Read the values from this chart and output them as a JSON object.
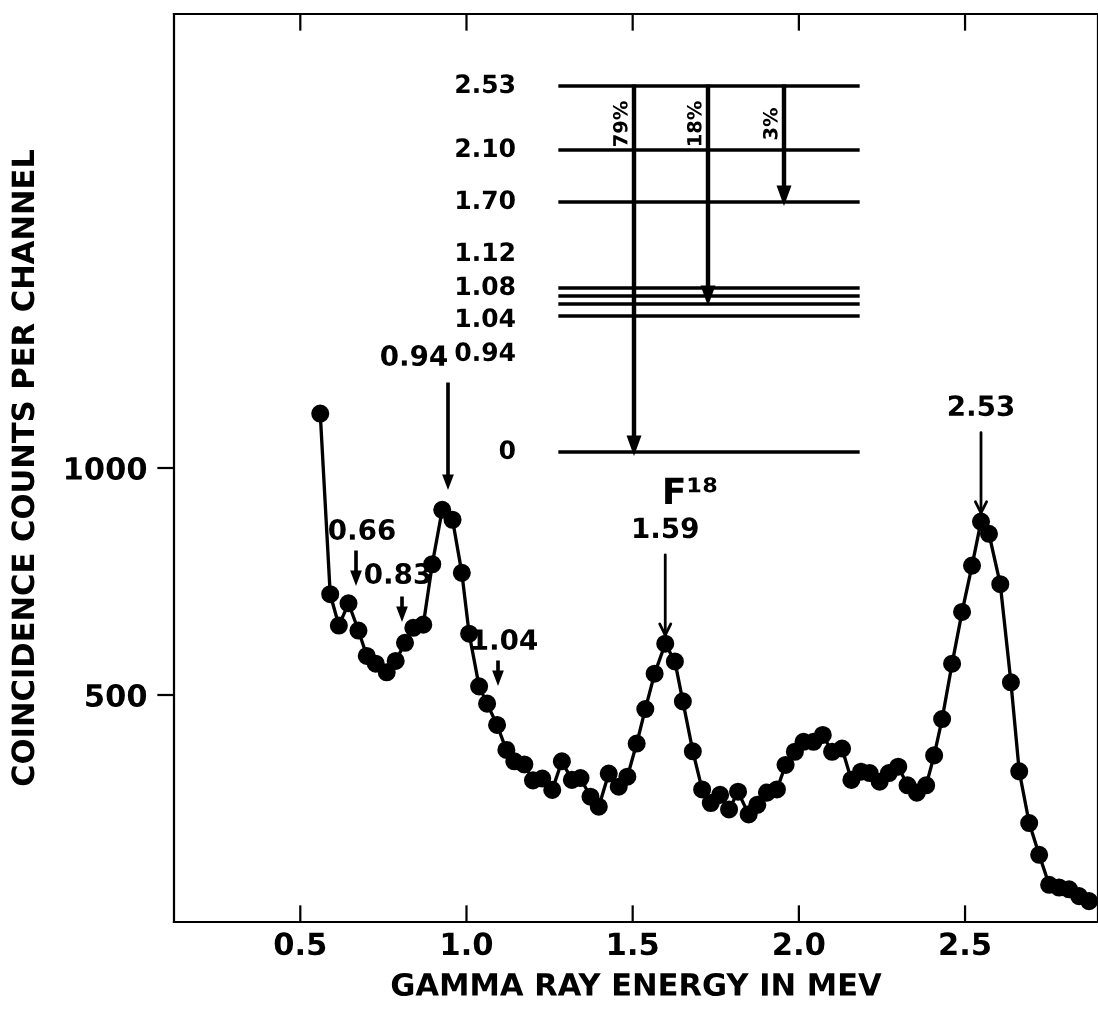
{
  "chart_data": {
    "type": "line",
    "xlabel": "GAMMA RAY ENERGY IN MEV",
    "ylabel": "COINCIDENCE COUNTS PER CHANNEL",
    "xlim": [
      0.12,
      2.9
    ],
    "ylim": [
      0,
      2000
    ],
    "xticks": [
      0.5,
      {
        "value": 1,
        "label": "1.0"
      },
      1.5,
      {
        "value": 2,
        "label": "2.0"
      },
      2.5
    ],
    "yticks": [
      500,
      1000
    ],
    "grid": false,
    "legend": false,
    "marker": "circle",
    "line_style": "solid",
    "series": [
      {
        "color": "#000000",
        "x": [
          0.56,
          0.59,
          0.616,
          0.645,
          0.675,
          0.7,
          0.727,
          0.76,
          0.787,
          0.815,
          0.84,
          0.87,
          0.897,
          0.927,
          0.958,
          0.986,
          1.008,
          1.038,
          1.062,
          1.092,
          1.12,
          1.144,
          1.174,
          1.2,
          1.228,
          1.258,
          1.287,
          1.317,
          1.343,
          1.373,
          1.398,
          1.428,
          1.458,
          1.484,
          1.512,
          1.538,
          1.566,
          1.598,
          1.627,
          1.651,
          1.681,
          1.709,
          1.735,
          1.763,
          1.79,
          1.817,
          1.849,
          1.875,
          1.904,
          1.934,
          1.96,
          1.988,
          2.014,
          2.044,
          2.072,
          2.1,
          2.13,
          2.158,
          2.187,
          2.213,
          2.243,
          2.271,
          2.299,
          2.327,
          2.355,
          2.383,
          2.407,
          2.431,
          2.461,
          2.491,
          2.521,
          2.548,
          2.572,
          2.606,
          2.638,
          2.663,
          2.693,
          2.723,
          2.753,
          2.783,
          2.813,
          2.843,
          2.873
        ],
        "values": [
          1120,
          722,
          653,
          702,
          642,
          586,
          569,
          550,
          575,
          615,
          648,
          655,
          788,
          908,
          886,
          769,
          635,
          519,
          481,
          434,
          379,
          354,
          347,
          312,
          316,
          291,
          354,
          313,
          317,
          276,
          254,
          327,
          298,
          320,
          393,
          469,
          547,
          613,
          574,
          486,
          376,
          292,
          262,
          280,
          248,
          287,
          237,
          258,
          285,
          292,
          346,
          375,
          397,
          397,
          412,
          375,
          382,
          313,
          331,
          328,
          309,
          328,
          342,
          301,
          285,
          301,
          367,
          447,
          569,
          683,
          785,
          882,
          855,
          744,
          528,
          332,
          218,
          148,
          82,
          76,
          72,
          57,
          46
        ]
      }
    ],
    "annotations": [
      {
        "text": "1.59",
        "x": 1.598,
        "y": 613
      },
      {
        "text": "2.53",
        "x": 2.548,
        "y": 882
      },
      "0.94",
      "0.66",
      "0.83",
      "1.04",
      "2.53",
      "2.10",
      "1.70",
      "1.12",
      "1.08",
      "1.04",
      "0.94",
      "0",
      "79%",
      "18%",
      "3%",
      "F¹⁸"
    ]
  }
}
